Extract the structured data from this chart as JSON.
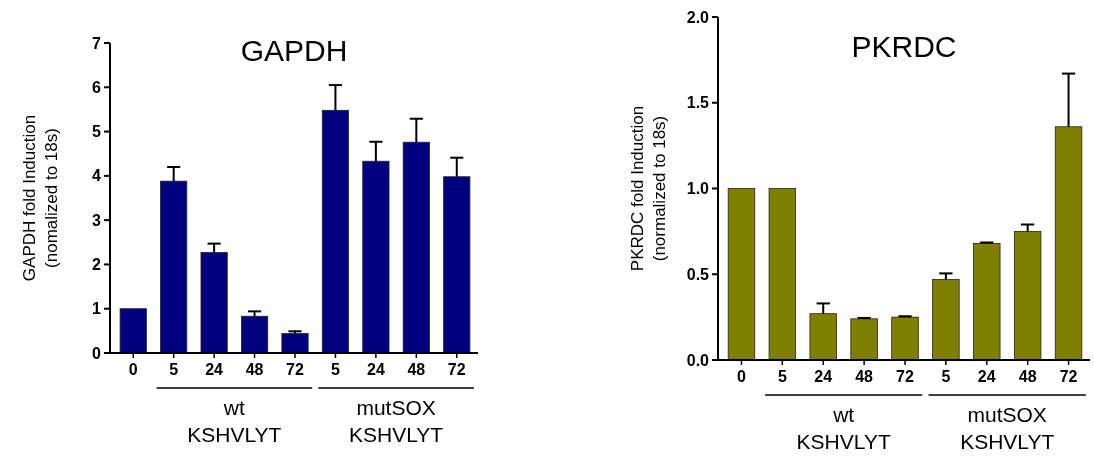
{
  "chart_data": [
    {
      "type": "bar",
      "title": "GAPDH",
      "ylabel": "GAPDH fold Induction\n(nomalized to 18s)",
      "categories": [
        "0",
        "5",
        "24",
        "48",
        "72",
        "5",
        "24",
        "48",
        "72"
      ],
      "values": [
        1.0,
        3.88,
        2.27,
        0.83,
        0.44,
        5.48,
        4.33,
        4.76,
        3.98
      ],
      "errors": [
        null,
        0.32,
        0.2,
        0.11,
        0.05,
        0.57,
        0.44,
        0.53,
        0.43
      ],
      "color": "#000080",
      "ylim": [
        0,
        7
      ],
      "yticks": [
        0,
        1,
        2,
        3,
        4,
        5,
        6,
        7
      ],
      "grid": false,
      "annotations": [
        "wt",
        "KSHVLYT",
        "mutSOX",
        "KSHVLYT"
      ]
    },
    {
      "type": "bar",
      "title": "PKRDC",
      "ylabel": "PKRDC fold Induction\n(normalized to 18s)",
      "categories": [
        "0",
        "5",
        "24",
        "48",
        "72",
        "5",
        "24",
        "48",
        "72"
      ],
      "values": [
        1.0,
        1.0,
        0.27,
        0.24,
        0.25,
        0.47,
        0.68,
        0.75,
        1.36
      ],
      "errors": [
        null,
        null,
        0.06,
        0.005,
        0.005,
        0.035,
        0.005,
        0.04,
        0.31
      ],
      "color": "#808000",
      "ylim": [
        0,
        2
      ],
      "yticks": [
        {
          "value": 0,
          "label": "0.0"
        },
        {
          "value": 0.5,
          "label": "0.5"
        },
        {
          "value": 1,
          "label": "1.0"
        },
        {
          "value": 1.5,
          "label": "1.5"
        },
        {
          "value": 2,
          "label": "2.0"
        }
      ],
      "grid": false,
      "annotations": [
        "wt",
        "KSHVLYT",
        "mutSOX",
        "KSHVLYT"
      ]
    }
  ]
}
